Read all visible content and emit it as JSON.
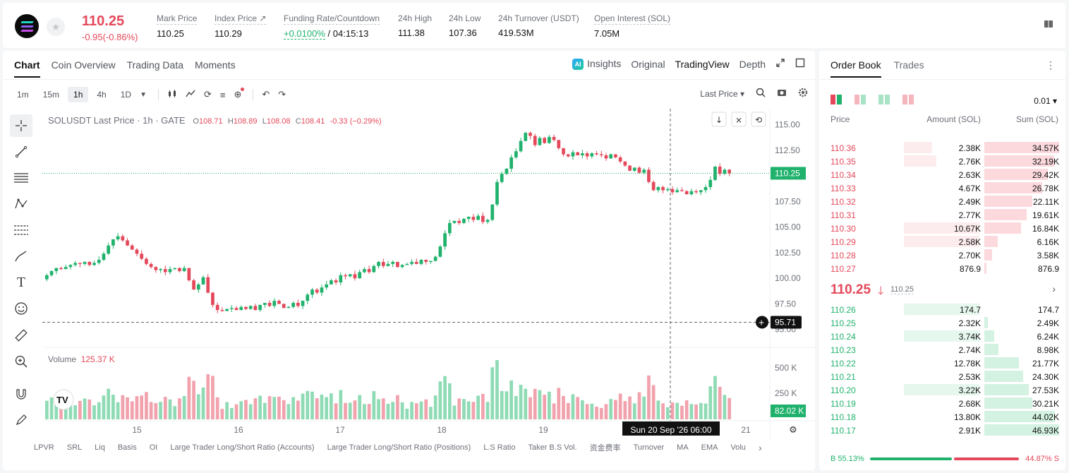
{
  "header": {
    "last_price": "110.25",
    "change": "-0.95(-0.86%)",
    "stats": [
      {
        "label": "Mark Price",
        "value": "110.25"
      },
      {
        "label": "Index Price ↗",
        "value": "110.29"
      },
      {
        "label": "Funding Rate/Countdown",
        "value_rate": "+0.0100%",
        "value_countdown": "/ 04:15:13"
      },
      {
        "label": "24h High",
        "value": "111.38"
      },
      {
        "label": "24h Low",
        "value": "107.36"
      },
      {
        "label": "24h Turnover (USDT)",
        "value": "419.53M"
      },
      {
        "label": "Open Interest (SOL)",
        "value": "7.05M"
      }
    ]
  },
  "chart_tabs": [
    "Chart",
    "Coin Overview",
    "Trading Data",
    "Moments"
  ],
  "view_tabs": [
    "Insights",
    "Original",
    "TradingView",
    "Depth"
  ],
  "ai_badge": "AI",
  "timeframes": [
    "1m",
    "15m",
    "1h",
    "4h",
    "1D"
  ],
  "price_type": "Last Price ▾",
  "legend": {
    "symbol": "SOLUSDT Last Price · 1h · GATE",
    "o": "108.71",
    "h": "108.89",
    "l": "108.08",
    "c": "108.41",
    "chg": "-0.33 (−0.29%)"
  },
  "volume_legend": {
    "label": "Volume",
    "value": "125.37 K"
  },
  "price_labels": {
    "last": "110.25",
    "crosshair": "95.71",
    "volume": "82.02 K"
  },
  "y_axis_ticks": [
    "115.00",
    "112.50",
    "110.25",
    "107.50",
    "105.00",
    "102.50",
    "100.00",
    "97.50",
    "95.00"
  ],
  "vol_axis_ticks": [
    "500 K",
    "250 K"
  ],
  "x_axis_ticks": [
    "15",
    "16",
    "17",
    "18",
    "19",
    "21"
  ],
  "crosshair_time": "Sun 20 Sep '26   06:00",
  "bottom_indicators": [
    "LPVR",
    "SRL",
    "Liq",
    "Basis",
    "OI",
    "Large Trader Long/Short Ratio (Accounts)",
    "Large Trader Long/Short Ratio (Positions)",
    "L.S Ratio",
    "Taker B.S Vol.",
    "资金费率",
    "Turnover",
    "MA",
    "EMA",
    "Volu"
  ],
  "chart_data": {
    "type": "candlestick",
    "symbol": "SOLUSDT",
    "interval": "1h",
    "ylim": [
      94.5,
      116
    ],
    "approx_close_path": [
      100.3,
      100.7,
      101.0,
      100.9,
      101.1,
      101.3,
      101.5,
      101.4,
      101.6,
      101.3,
      101.5,
      101.8,
      102.4,
      103.2,
      103.8,
      104.1,
      103.7,
      103.2,
      102.8,
      102.4,
      101.9,
      101.4,
      101.1,
      100.8,
      100.9,
      100.6,
      100.9,
      101.0,
      100.7,
      101.0,
      99.8,
      98.9,
      99.4,
      100.1,
      98.6,
      97.4,
      96.9,
      96.8,
      97.0,
      97.1,
      96.9,
      97.2,
      97.0,
      97.3,
      96.9,
      97.4,
      97.6,
      97.3,
      97.8,
      97.5,
      97.1,
      97.2,
      97.6,
      97.3,
      97.8,
      98.4,
      98.9,
      98.6,
      99.1,
      99.4,
      99.8,
      99.6,
      100.3,
      100.2,
      100.4,
      100.0,
      100.6,
      100.9,
      100.6,
      101.2,
      101.6,
      101.2,
      101.4,
      101.6,
      101.1,
      101.3,
      101.4,
      101.6,
      101.4,
      101.8,
      101.6,
      101.7,
      102.1,
      103.1,
      104.4,
      105.4,
      105.6,
      105.4,
      105.8,
      106.0,
      105.7,
      106.1,
      105.5,
      105.7,
      107.2,
      109.4,
      110.2,
      110.7,
      111.8,
      112.4,
      113.4,
      114.2,
      113.9,
      113.0,
      113.7,
      113.2,
      113.8,
      113.5,
      112.7,
      112.1,
      111.9,
      112.3,
      112.0,
      112.2,
      111.9,
      112.2,
      112.1,
      112.0,
      111.7,
      112.1,
      111.8,
      111.4,
      111.0,
      110.5,
      110.8,
      110.3,
      110.6,
      109.4,
      108.6,
      108.9,
      108.6,
      108.7,
      108.4,
      108.6,
      108.5,
      108.2,
      108.5,
      108.4,
      108.6,
      108.9,
      109.6,
      110.9,
      110.2,
      110.6,
      110.25
    ],
    "last_price": 110.25,
    "volume_max_k": 620
  },
  "orderbook": {
    "tabs": [
      "Order Book",
      "Trades"
    ],
    "precision": "0.01 ▾",
    "headers": [
      "Price",
      "Amount (SOL)",
      "Sum (SOL)"
    ],
    "asks": [
      {
        "price": "110.36",
        "amount": "2.38K",
        "sum": "34.57K",
        "amt_frac": 0.36,
        "sum_frac": 1.0
      },
      {
        "price": "110.35",
        "amount": "2.76K",
        "sum": "32.19K",
        "amt_frac": 0.42,
        "sum_frac": 0.93
      },
      {
        "price": "110.34",
        "amount": "2.63K",
        "sum": "29.42K",
        "amt_frac": 0.0,
        "sum_frac": 0.85
      },
      {
        "price": "110.33",
        "amount": "4.67K",
        "sum": "26.78K",
        "amt_frac": 0.0,
        "sum_frac": 0.77
      },
      {
        "price": "110.32",
        "amount": "2.49K",
        "sum": "22.11K",
        "amt_frac": 0.0,
        "sum_frac": 0.64
      },
      {
        "price": "110.31",
        "amount": "2.77K",
        "sum": "19.61K",
        "amt_frac": 0.0,
        "sum_frac": 0.57
      },
      {
        "price": "110.30",
        "amount": "10.67K",
        "sum": "16.84K",
        "amt_frac": 0.97,
        "sum_frac": 0.49
      },
      {
        "price": "110.29",
        "amount": "2.58K",
        "sum": "6.16K",
        "amt_frac": 0.97,
        "sum_frac": 0.18
      },
      {
        "price": "110.28",
        "amount": "2.70K",
        "sum": "3.58K",
        "amt_frac": 0.0,
        "sum_frac": 0.1
      },
      {
        "price": "110.27",
        "amount": "876.9",
        "sum": "876.9",
        "amt_frac": 0.0,
        "sum_frac": 0.03
      }
    ],
    "mid_price": "110.25",
    "mid_arrow": "🡓",
    "mark_price": "110.25",
    "bids": [
      {
        "price": "110.26",
        "amount": "174.7",
        "sum": "174.7",
        "amt_frac": 0.97,
        "sum_frac": 0.0
      },
      {
        "price": "110.25",
        "amount": "2.32K",
        "sum": "2.49K",
        "amt_frac": 0.0,
        "sum_frac": 0.05
      },
      {
        "price": "110.24",
        "amount": "3.74K",
        "sum": "6.24K",
        "amt_frac": 0.97,
        "sum_frac": 0.13
      },
      {
        "price": "110.23",
        "amount": "2.74K",
        "sum": "8.98K",
        "amt_frac": 0.0,
        "sum_frac": 0.19
      },
      {
        "price": "110.22",
        "amount": "12.78K",
        "sum": "21.77K",
        "amt_frac": 0.0,
        "sum_frac": 0.46
      },
      {
        "price": "110.21",
        "amount": "2.53K",
        "sum": "24.30K",
        "amt_frac": 0.0,
        "sum_frac": 0.52
      },
      {
        "price": "110.20",
        "amount": "3.22K",
        "sum": "27.53K",
        "amt_frac": 0.97,
        "sum_frac": 0.59
      },
      {
        "price": "110.19",
        "amount": "2.68K",
        "sum": "30.21K",
        "amt_frac": 0.0,
        "sum_frac": 0.64
      },
      {
        "price": "110.18",
        "amount": "13.80K",
        "sum": "44.02K",
        "amt_frac": 0.0,
        "sum_frac": 0.94
      },
      {
        "price": "110.17",
        "amount": "2.91K",
        "sum": "46.93K",
        "amt_frac": 0.0,
        "sum_frac": 1.0
      }
    ],
    "buy_ratio": "B 55.13%",
    "sell_ratio": "44.87% S",
    "buy_frac": 0.5513
  },
  "colors": {
    "up": "#20b26c",
    "down": "#e4485a",
    "up_light": "#e6f7ee",
    "down_light": "#fdecee"
  }
}
